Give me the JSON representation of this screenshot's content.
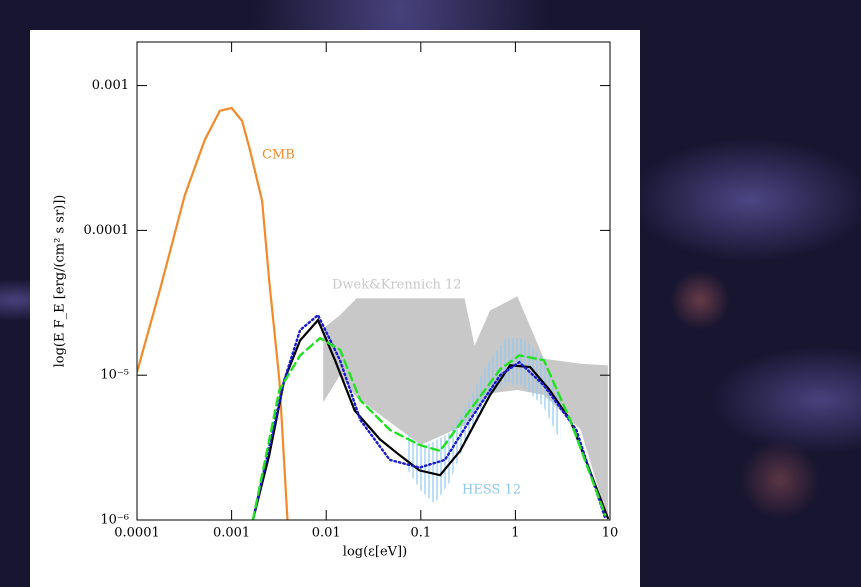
{
  "chart_data": {
    "type": "line",
    "xlabel": "log(ε[eV])",
    "ylabel": "log(E F_E [erg/(cm² s sr)])",
    "log_x": true,
    "log_y": true,
    "xlim": [
      0.0001,
      10
    ],
    "ylim": [
      1e-06,
      0.002
    ],
    "xticks": [
      0.0001,
      0.001,
      0.01,
      0.1,
      1,
      10
    ],
    "yticks": [
      {
        "value": 1e-06,
        "label": "10⁻⁶"
      },
      {
        "value": 1e-05,
        "label": "10⁻⁵"
      },
      0.0001,
      0.001
    ],
    "bands": [
      {
        "name": "Dwek&Krennich 12",
        "color": "#c8c8c8",
        "style": "solid",
        "x": [
          0.0093,
          0.014,
          0.021,
          0.1,
          0.29,
          0.37,
          0.54,
          1.05,
          2,
          4.9,
          9.5
        ],
        "upper": [
          2.1e-05,
          2.6e-05,
          3.4e-05,
          3.4e-05,
          3.4e-05,
          1.6e-05,
          2.8e-05,
          3.5e-05,
          1.3e-05,
          1.2e-05,
          1.17e-05
        ],
        "lower": [
          6.5e-06,
          1e-05,
          7e-06,
          3.3e-06,
          4.5e-06,
          5.5e-06,
          7.5e-06,
          7.9e-06,
          7.3e-06,
          4.2e-06,
          1e-06
        ]
      },
      {
        "name": "HESS 12",
        "color": "#8ec8f0",
        "style": "hatch",
        "x": [
          0.07,
          0.1,
          0.14,
          0.2,
          0.3,
          0.5,
          0.8,
          1.2,
          2,
          3
        ],
        "upper": [
          4e-06,
          3.2e-06,
          3.5e-06,
          4e-06,
          6e-06,
          1.2e-05,
          1.8e-05,
          1.8e-05,
          1.3e-05,
          7e-06
        ],
        "lower": [
          2.3e-06,
          1.6e-06,
          1.3e-06,
          1.8e-06,
          3.5e-06,
          7e-06,
          9e-06,
          8.5e-06,
          6e-06,
          3.5e-06
        ]
      }
    ],
    "series": [
      {
        "name": "CMB",
        "color": "#f28a2a",
        "dash": "solid",
        "x": [
          0.0001,
          0.000175,
          0.00032,
          0.00052,
          0.00075,
          0.001,
          0.00129,
          0.00156,
          0.0021,
          0.0025,
          0.0032,
          0.0039
        ],
        "values": [
          1.05e-05,
          3.9e-05,
          0.000175,
          0.00042,
          0.00067,
          0.0007,
          0.00057,
          0.00036,
          0.00016,
          4.5e-05,
          9.2e-06,
          1e-06
        ]
      },
      {
        "color": "#000000",
        "dash": "solid",
        "x": [
          0.00168,
          0.0025,
          0.0036,
          0.0053,
          0.0082,
          0.0124,
          0.02,
          0.037,
          0.06,
          0.097,
          0.16,
          0.26,
          0.54,
          0.88,
          1.43,
          2.3,
          3.8,
          6.1,
          9.5
        ],
        "values": [
          1e-06,
          2.8e-06,
          9.2e-06,
          1.74e-05,
          2.4e-05,
          1.27e-05,
          5.7e-06,
          3.6e-06,
          2.8e-06,
          2.2e-06,
          2.04e-06,
          3e-06,
          7.3e-06,
          1.17e-05,
          1.14e-05,
          7.9e-06,
          4.9e-06,
          2.2e-06,
          1.03e-06
        ]
      },
      {
        "color": "#1a1ad0",
        "dash": "dotted",
        "x": [
          0.00168,
          0.0036,
          0.0053,
          0.0082,
          0.014,
          0.023,
          0.047,
          0.097,
          0.18,
          0.33,
          0.69,
          1.1,
          2,
          4.4,
          8.9
        ],
        "values": [
          1e-06,
          9.2e-06,
          2.05e-05,
          2.6e-05,
          1.27e-05,
          4.9e-06,
          2.6e-06,
          2.3e-06,
          2.6e-06,
          4.9e-06,
          1e-05,
          1.23e-05,
          8.5e-06,
          4.2e-06,
          1.03e-06
        ]
      },
      {
        "color": "#22e022",
        "dash": "dashed",
        "x": [
          0.00168,
          0.0032,
          0.0053,
          0.0086,
          0.014,
          0.023,
          0.047,
          0.097,
          0.16,
          0.33,
          0.69,
          1.1,
          2,
          3.8,
          8.9
        ],
        "values": [
          1e-06,
          7.9e-06,
          1.37e-05,
          1.8e-05,
          1.5e-05,
          6.7e-06,
          4.2e-06,
          3.3e-06,
          3e-06,
          5.7e-06,
          1.1e-05,
          1.37e-05,
          1.27e-05,
          4.9e-06,
          1.08e-06
        ]
      }
    ]
  }
}
